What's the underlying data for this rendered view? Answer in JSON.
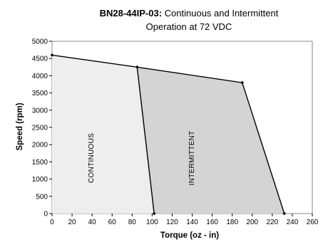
{
  "chart_data": {
    "type": "area",
    "title": {
      "bold": "BN28-44IP-03:",
      "rest": " Continuous and Intermittent",
      "line2": "Operation at 72 VDC"
    },
    "xlabel": "Torque (oz - in)",
    "ylabel": "Speed (rpm)",
    "xlim": [
      0,
      260
    ],
    "ylim": [
      0,
      5000
    ],
    "x_ticks": [
      0,
      20,
      40,
      60,
      80,
      100,
      120,
      140,
      160,
      180,
      200,
      220,
      240,
      260
    ],
    "y_ticks": [
      0,
      500,
      1000,
      1500,
      2000,
      2500,
      3000,
      3500,
      4000,
      4500,
      5000
    ],
    "grid": false,
    "series": [
      {
        "name": "CONTINUOUS",
        "fill": "#eeeeee",
        "points": [
          [
            0,
            4600
          ],
          [
            85,
            4250
          ],
          [
            102,
            0
          ],
          [
            0,
            0
          ]
        ]
      },
      {
        "name": "INTERMITTENT",
        "fill": "#d4d4d4",
        "points": [
          [
            85,
            4250
          ],
          [
            190,
            3800
          ],
          [
            232,
            0
          ],
          [
            102,
            0
          ]
        ]
      }
    ],
    "curve": [
      [
        0,
        4600
      ],
      [
        85,
        4250
      ],
      [
        190,
        3800
      ],
      [
        232,
        0
      ]
    ],
    "curve_markers": [
      [
        0,
        4600
      ],
      [
        85,
        4250
      ],
      [
        190,
        3800
      ],
      [
        232,
        0
      ],
      [
        102,
        0
      ]
    ],
    "colors": {
      "plot_background": "#ffffff",
      "line": "#000000",
      "marker": "#000000"
    }
  }
}
